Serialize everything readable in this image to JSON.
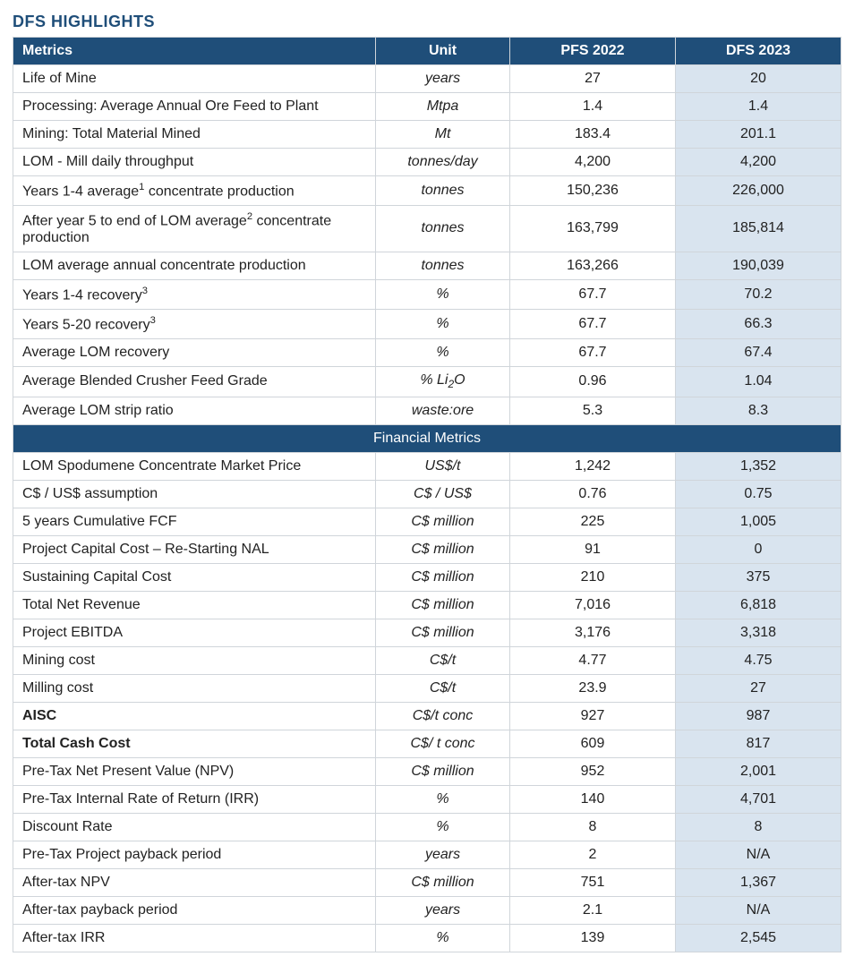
{
  "title": "DFS HIGHLIGHTS",
  "colors": {
    "header_bg": "#1f4e79",
    "header_text": "#ffffff",
    "highlight_bg": "#d9e4ef",
    "border": "#d0d5da",
    "title": "#1f4e79"
  },
  "columns": [
    "Metrics",
    "Unit",
    "PFS 2022",
    "DFS 2023"
  ],
  "section_header": "Financial Metrics",
  "operational": [
    {
      "metric": "Life of Mine",
      "unit": "years",
      "pfs": "27",
      "dfs": "20"
    },
    {
      "metric": "Processing: Average Annual Ore Feed to Plant",
      "unit": "Mtpa",
      "pfs": "1.4",
      "dfs": "1.4"
    },
    {
      "metric": "Mining: Total Material Mined",
      "unit": "Mt",
      "pfs": "183.4",
      "dfs": "201.1"
    },
    {
      "metric": "LOM - Mill daily throughput",
      "unit": "tonnes/day",
      "pfs": "4,200",
      "dfs": "4,200"
    },
    {
      "metric": "Years 1-4 average¹ concentrate production",
      "unit": "tonnes",
      "pfs": "150,236",
      "dfs": "226,000"
    },
    {
      "metric": "After year 5 to end of LOM average² concentrate production",
      "unit": "tonnes",
      "pfs": "163,799",
      "dfs": "185,814"
    },
    {
      "metric": "LOM average annual concentrate production",
      "unit": "tonnes",
      "pfs": "163,266",
      "dfs": "190,039"
    },
    {
      "metric": "Years 1-4 recovery³",
      "unit": "%",
      "pfs": "67.7",
      "dfs": "70.2"
    },
    {
      "metric": "Years 5-20 recovery³",
      "unit": "%",
      "pfs": "67.7",
      "dfs": "66.3"
    },
    {
      "metric": "Average LOM recovery",
      "unit": "%",
      "pfs": "67.7",
      "dfs": "67.4"
    },
    {
      "metric": "Average Blended Crusher Feed Grade",
      "unit": "% Li₂O",
      "pfs": "0.96",
      "dfs": "1.04"
    },
    {
      "metric": "Average LOM strip ratio",
      "unit": "waste:ore",
      "pfs": "5.3",
      "dfs": "8.3"
    }
  ],
  "financial": [
    {
      "metric": "LOM Spodumene Concentrate Market Price",
      "unit": "US$/t",
      "pfs": "1,242",
      "dfs": "1,352"
    },
    {
      "metric": "C$ / US$ assumption",
      "unit": "C$ / US$",
      "pfs": "0.76",
      "dfs": "0.75"
    },
    {
      "metric": "5 years Cumulative FCF",
      "unit": "C$ million",
      "pfs": "225",
      "dfs": "1,005"
    },
    {
      "metric": "Project Capital Cost – Re-Starting NAL",
      "unit": "C$ million",
      "pfs": "91",
      "dfs": "0"
    },
    {
      "metric": "Sustaining Capital Cost",
      "unit": "C$ million",
      "pfs": "210",
      "dfs": "375"
    },
    {
      "metric": "Total Net Revenue",
      "unit": "C$ million",
      "pfs": "7,016",
      "dfs": "6,818"
    },
    {
      "metric": "Project EBITDA",
      "unit": "C$ million",
      "pfs": "3,176",
      "dfs": "3,318"
    },
    {
      "metric": "Mining cost",
      "unit": "C$/t",
      "pfs": "4.77",
      "dfs": "4.75"
    },
    {
      "metric": "Milling cost",
      "unit": "C$/t",
      "pfs": "23.9",
      "dfs": "27"
    },
    {
      "metric": "AISC",
      "bold": true,
      "unit": "C$/t conc",
      "pfs": "927",
      "dfs": "987"
    },
    {
      "metric": "Total Cash Cost",
      "bold": true,
      "unit": "C$/ t conc",
      "pfs": "609",
      "dfs": "817"
    },
    {
      "metric": "Pre-Tax Net Present Value (NPV)",
      "unit": "C$ million",
      "pfs": "952",
      "dfs": "2,001"
    },
    {
      "metric": "Pre-Tax Internal Rate of Return (IRR)",
      "unit": "%",
      "pfs": "140",
      "dfs": "4,701"
    },
    {
      "metric": "Discount Rate",
      "unit": "%",
      "pfs": "8",
      "dfs": "8"
    },
    {
      "metric": "Pre-Tax Project payback period",
      "unit": "years",
      "pfs": "2",
      "dfs": "N/A"
    },
    {
      "metric": "After-tax NPV",
      "unit": "C$ million",
      "pfs": "751",
      "dfs": "1,367"
    },
    {
      "metric": "After-tax payback period",
      "unit": "years",
      "pfs": "2.1",
      "dfs": "N/A"
    },
    {
      "metric": "After-tax IRR",
      "unit": "%",
      "pfs": "139",
      "dfs": "2,545"
    }
  ]
}
